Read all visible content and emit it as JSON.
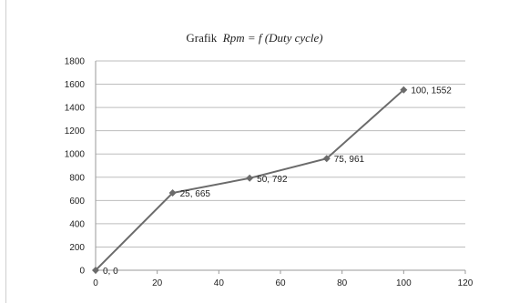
{
  "chart_data": {
    "type": "line",
    "title_prefix": "Grafik",
    "title_expr": "Rpm = f (Duty cycle)",
    "xlim": [
      0,
      120
    ],
    "ylim": [
      0,
      1800
    ],
    "x_ticks": [
      0,
      20,
      40,
      60,
      80,
      100,
      120
    ],
    "y_ticks": [
      0,
      200,
      400,
      600,
      800,
      1000,
      1200,
      1400,
      1600,
      1800
    ],
    "grid": "horizontal",
    "series_color": "#6b6b6b",
    "points": [
      {
        "x": 0,
        "y": 0,
        "label": "0, 0"
      },
      {
        "x": 25,
        "y": 665,
        "label": "25, 665"
      },
      {
        "x": 50,
        "y": 792,
        "label": "50, 792"
      },
      {
        "x": 75,
        "y": 961,
        "label": "75, 961"
      },
      {
        "x": 100,
        "y": 1552,
        "label": "100, 1552"
      }
    ]
  }
}
